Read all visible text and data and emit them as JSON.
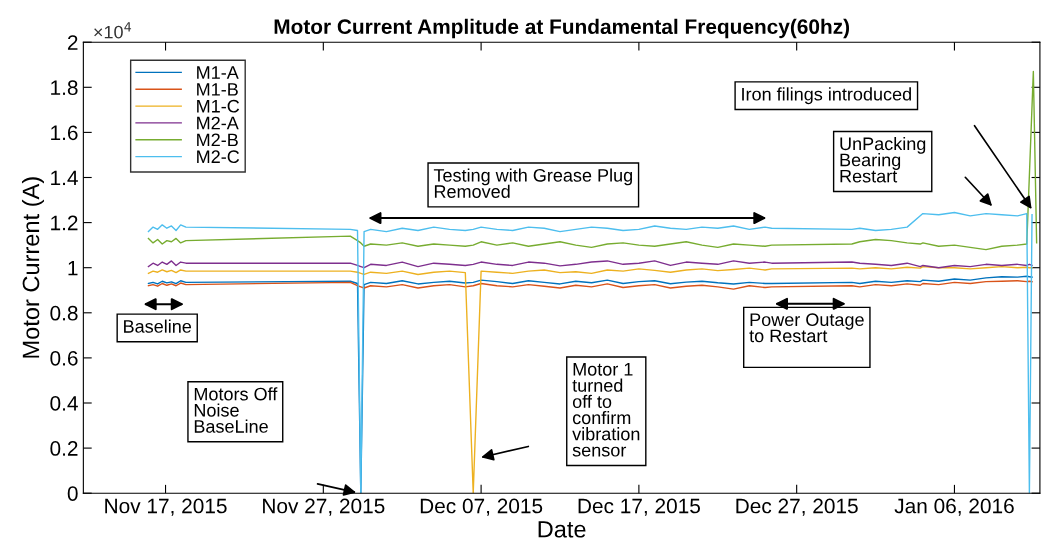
{
  "chart_data": {
    "type": "line",
    "title": "Motor Current Amplitude at Fundamental Frequency(60hz)",
    "xlabel": "Date",
    "ylabel": "Motor Current (A)",
    "x": [
      "2015-11-15T22:00",
      "2015-11-16T05:00",
      "2015-11-16T12:00",
      "2015-11-16T19:00",
      "2015-11-17T02:00",
      "2015-11-17T09:00",
      "2015-11-17T16:00",
      "2015-11-17T23:00",
      "2015-11-18T07:00",
      "2015-11-28T17:00",
      "2015-11-29T04:00",
      "2015-11-29T09:00",
      "2015-11-29T14:00",
      "2015-11-30T00:00",
      "2015-12-01",
      "2015-12-02",
      "2015-12-03",
      "2015-12-04",
      "2015-12-05",
      "2015-12-06",
      "2015-12-06T12:00",
      "2015-12-07",
      "2015-12-08",
      "2015-12-09",
      "2015-12-10",
      "2015-12-11",
      "2015-12-12",
      "2015-12-13",
      "2015-12-14",
      "2015-12-15",
      "2015-12-16",
      "2015-12-17",
      "2015-12-18",
      "2015-12-19",
      "2015-12-20",
      "2015-12-21",
      "2015-12-22",
      "2015-12-23",
      "2015-12-24",
      "2015-12-25",
      "2015-12-25T10:00",
      "2015-12-30T12:00",
      "2015-12-31",
      "2016-01-01",
      "2016-01-02",
      "2016-01-03",
      "2016-01-03T20:00",
      "2016-01-04",
      "2016-01-05",
      "2016-01-06",
      "2016-01-07",
      "2016-01-08",
      "2016-01-09",
      "2016-01-10",
      "2016-01-10T14:00",
      "2016-01-10T18:00",
      "2016-01-10T22:00"
    ],
    "series": [
      {
        "name": "M1-A",
        "color": "#0072bd",
        "values": [
          0.93,
          0.935,
          0.928,
          0.94,
          0.933,
          0.937,
          0.929,
          0.942,
          0.935,
          0.94,
          0.93,
          0,
          0.925,
          0.935,
          0.93,
          0.942,
          0.928,
          0.935,
          0.94,
          0.932,
          0.935,
          0.945,
          0.938,
          0.93,
          0.942,
          0.935,
          0.928,
          0.94,
          0.933,
          0.945,
          0.93,
          0.938,
          0.942,
          0.929,
          0.936,
          0.94,
          0.933,
          0.928,
          0.935,
          0.93,
          0.93,
          0.935,
          0.93,
          0.94,
          0.935,
          0.942,
          0.938,
          0.945,
          0.94,
          0.95,
          0.945,
          0.955,
          0.96,
          0.958,
          0.962,
          0.96,
          0.958
        ]
      },
      {
        "name": "M1-B",
        "color": "#d95319",
        "values": [
          0.92,
          0.925,
          0.918,
          0.93,
          0.922,
          0.928,
          0.92,
          0.932,
          0.925,
          0.935,
          0.92,
          0.915,
          0.91,
          0.92,
          0.915,
          0.925,
          0.91,
          0.92,
          0.925,
          0.915,
          0.92,
          0.93,
          0.92,
          0.915,
          0.925,
          0.918,
          0.91,
          0.922,
          0.915,
          0.928,
          0.912,
          0.92,
          0.925,
          0.91,
          0.918,
          0.922,
          0.915,
          0.905,
          0.92,
          0.912,
          0.915,
          0.92,
          0.915,
          0.925,
          0.92,
          0.928,
          0.922,
          0.93,
          0.925,
          0.935,
          0.93,
          0.938,
          0.94,
          0.942,
          0.938,
          0.94,
          0.938
        ]
      },
      {
        "name": "M1-C",
        "color": "#edb120",
        "values": [
          0.975,
          0.985,
          0.98,
          0.99,
          0.982,
          0.988,
          0.978,
          0.99,
          0.985,
          0.985,
          0.98,
          0.975,
          0.97,
          0.98,
          0.975,
          0.985,
          0.97,
          0.98,
          0.985,
          0.978,
          0,
          0.985,
          0.98,
          0.975,
          0.985,
          0.99,
          0.978,
          0.982,
          0.975,
          0.99,
          0.985,
          0.995,
          0.988,
          0.98,
          0.99,
          0.995,
          0.987,
          0.992,
          0.998,
          0.99,
          0.995,
          0.998,
          0.995,
          1.0,
          0.995,
          1.002,
          0.998,
          1.005,
          1.0,
          1.0,
          0.995,
          1.0,
          1.005,
          1.0,
          1.002,
          1.0,
          1.0
        ]
      },
      {
        "name": "M2-A",
        "color": "#7e2f8e",
        "values": [
          1.005,
          1.02,
          1.01,
          1.025,
          1.015,
          1.03,
          1.01,
          1.025,
          1.02,
          1.02,
          1.01,
          1.005,
          1.0,
          1.015,
          1.01,
          1.025,
          1.005,
          1.02,
          1.015,
          1.01,
          1.015,
          1.025,
          1.015,
          1.01,
          1.025,
          1.02,
          1.008,
          1.015,
          1.025,
          1.03,
          1.015,
          1.02,
          1.03,
          1.01,
          1.025,
          1.02,
          1.015,
          1.03,
          1.02,
          1.025,
          1.02,
          1.025,
          1.02,
          1.015,
          1.01,
          1.02,
          1.005,
          1.01,
          1.0,
          1.01,
          1.005,
          1.015,
          1.01,
          1.015,
          1.01,
          1.015,
          1.01
        ]
      },
      {
        "name": "M2-B",
        "color": "#77ac30",
        "x": [
          "2015-11-15T22:00",
          "2015-11-16T05:00",
          "2015-11-16T12:00",
          "2015-11-16T19:00",
          "2015-11-17T02:00",
          "2015-11-17T09:00",
          "2015-11-17T16:00",
          "2015-11-17T23:00",
          "2015-11-18T07:00",
          "2015-11-28T17:00",
          "2015-11-29T04:00",
          "2015-11-29T09:00",
          "2015-11-29T14:00",
          "2015-11-30T00:00",
          "2015-12-01",
          "2015-12-02",
          "2015-12-03",
          "2015-12-04",
          "2015-12-05",
          "2015-12-06",
          "2015-12-06T12:00",
          "2015-12-07",
          "2015-12-08",
          "2015-12-09",
          "2015-12-10",
          "2015-12-11",
          "2015-12-12",
          "2015-12-13",
          "2015-12-14",
          "2015-12-15",
          "2015-12-16",
          "2015-12-17",
          "2015-12-18",
          "2015-12-19",
          "2015-12-20",
          "2015-12-21",
          "2015-12-22",
          "2015-12-23",
          "2015-12-24",
          "2015-12-25",
          "2015-12-25T10:00",
          "2015-12-30T12:00",
          "2015-12-31",
          "2016-01-01",
          "2016-01-02",
          "2016-01-03",
          "2016-01-03T20:00",
          "2016-01-04",
          "2016-01-05",
          "2016-01-06",
          "2016-01-07",
          "2016-01-08",
          "2016-01-09",
          "2016-01-10",
          "2016-01-10T14:00",
          "2016-01-11T00:00",
          "2016-01-11T05:00"
        ],
        "values": [
          1.13,
          1.11,
          1.125,
          1.105,
          1.12,
          1.115,
          1.13,
          1.11,
          1.12,
          1.14,
          1.12,
          1.11,
          1.095,
          1.105,
          1.1,
          1.11,
          1.095,
          1.105,
          1.1,
          1.095,
          1.1,
          1.115,
          1.1,
          1.11,
          1.095,
          1.105,
          1.115,
          1.1,
          1.09,
          1.105,
          1.11,
          1.1,
          1.095,
          1.105,
          1.115,
          1.1,
          1.09,
          1.105,
          1.1,
          1.095,
          1.1,
          1.105,
          1.115,
          1.125,
          1.12,
          1.11,
          1.105,
          1.11,
          1.095,
          1.1,
          1.09,
          1.08,
          1.095,
          1.1,
          1.105,
          1.87,
          1.11
        ]
      },
      {
        "name": "M2-C",
        "color": "#4dbeee",
        "values": [
          1.16,
          1.18,
          1.17,
          1.19,
          1.175,
          1.185,
          1.165,
          1.19,
          1.18,
          1.17,
          1.165,
          0,
          1.16,
          1.17,
          1.16,
          1.175,
          1.165,
          1.18,
          1.17,
          1.165,
          1.17,
          1.18,
          1.17,
          1.165,
          1.18,
          1.175,
          1.16,
          1.17,
          1.18,
          1.175,
          1.165,
          1.17,
          1.185,
          1.175,
          1.17,
          1.18,
          1.175,
          1.185,
          1.17,
          1.18,
          1.175,
          1.17,
          1.175,
          1.165,
          1.17,
          1.18,
          1.23,
          1.24,
          1.235,
          1.245,
          1.23,
          1.24,
          1.235,
          1.23,
          1.24,
          0,
          1.235
        ]
      }
    ],
    "xlim": [
      "2015-11-11T19:00",
      "2016-01-11T10:00"
    ],
    "xticks": [
      {
        "value": "2015-11-17",
        "label": "Nov 17, 2015"
      },
      {
        "value": "2015-11-27",
        "label": "Nov 27, 2015"
      },
      {
        "value": "2015-12-07",
        "label": "Dec 07, 2015"
      },
      {
        "value": "2015-12-17",
        "label": "Dec 17, 2015"
      },
      {
        "value": "2015-12-27",
        "label": "Dec 27, 2015"
      },
      {
        "value": "2016-01-06",
        "label": "Jan 06, 2016"
      }
    ],
    "ylim": [
      0,
      2
    ],
    "yticks": [
      0,
      0.2,
      0.4,
      0.6,
      0.8,
      1,
      1.2,
      1.4,
      1.6,
      1.8,
      2
    ],
    "annotations": [
      "×10$^{4}$",
      "Testing with Grease Plug\nRemoved",
      "Baseline",
      "Power Outage\nto Restart\n ",
      "Motors Off\nNoise\nBaseLine",
      "Motor 1\nturned\noff to\nconfirm\nvibration\nsensor",
      "UnPacking\nBearing\nRestart",
      "Iron filings introduced"
    ],
    "legend": "top left",
    "grid": false,
    "marker": "none",
    "line_style": "solid"
  }
}
